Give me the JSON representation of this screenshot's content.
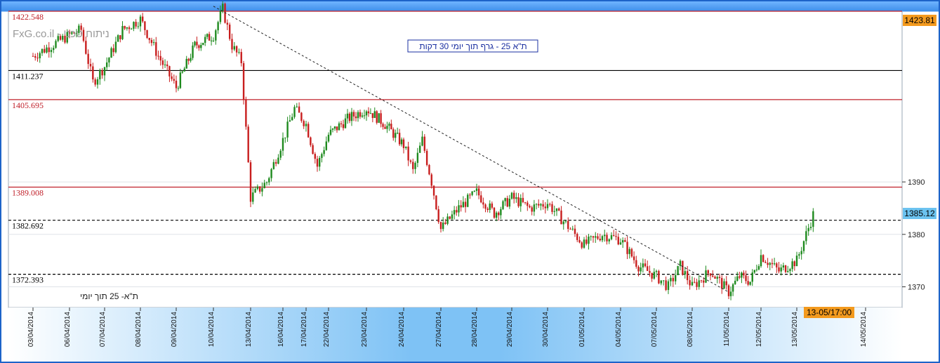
{
  "watermark": "FxG.co.il - ניתוח טכני",
  "chart_title": "ת\"א 25 - גרף תוך יומי 30 דקות",
  "instrument_label": "ת\"א- 25 תוך יומי",
  "price_tag_top": "1423.81",
  "price_tag_current": "1385.12",
  "time_tag": "13-05/17:00",
  "colors": {
    "up": "#1e8a1e",
    "down": "#c81e1e",
    "resistance": "#c0202a",
    "support": "#000000",
    "price_tag": "#f39a1e",
    "current_tag": "#6cc3f0"
  },
  "chart_data": {
    "type": "candlestick",
    "title": "ת\"א 25 - גרף תוך יומי 30 דקות",
    "interval": "30 min",
    "ylim": [
      1366,
      1425
    ],
    "y_ticks": [
      1370,
      1380,
      1390
    ],
    "x_ticks": [
      "03/04/2014",
      "06/04/2014",
      "07/04/2014",
      "08/04/2014",
      "09/04/2014",
      "10/04/2014",
      "13/04/2014",
      "16/04/2014",
      "17/04/2014",
      "22/04/2014",
      "23/04/2014",
      "24/04/2014",
      "27/04/2014",
      "28/04/2014",
      "29/04/2014",
      "30/04/2014",
      "01/05/2014",
      "04/05/2014",
      "07/05/2014",
      "08/05/2014",
      "11/05/2014",
      "12/05/2014",
      "13/05/2014",
      "14/05/2014"
    ],
    "horizontal_levels": [
      {
        "value": 1422.548,
        "label": "1422.548",
        "color": "red",
        "style": "solid"
      },
      {
        "value": 1411.237,
        "label": "1411.237",
        "color": "black",
        "style": "solid"
      },
      {
        "value": 1405.695,
        "label": "1405.695",
        "color": "red",
        "style": "solid"
      },
      {
        "value": 1389.008,
        "label": "1389.008",
        "color": "red",
        "style": "solid"
      },
      {
        "value": 1382.692,
        "label": "1382.692",
        "color": "black",
        "style": "dashed"
      },
      {
        "value": 1372.393,
        "label": "1372.393",
        "color": "black",
        "style": "dashed"
      }
    ],
    "trendline": {
      "from": {
        "date": "10/04/2014",
        "value": 1423.5
      },
      "to": {
        "date": "11/05/2014",
        "value": 1369.0
      }
    },
    "price_path": [
      {
        "date": "03/04/2014",
        "value": 1414
      },
      {
        "date": "03/04/2014",
        "value": 1416
      },
      {
        "date": "06/04/2014",
        "value": 1418
      },
      {
        "date": "06/04/2014",
        "value": 1419
      },
      {
        "date": "06/04/2014",
        "value": 1409
      },
      {
        "date": "07/04/2014",
        "value": 1412
      },
      {
        "date": "07/04/2014",
        "value": 1419
      },
      {
        "date": "08/04/2014",
        "value": 1421
      },
      {
        "date": "08/04/2014",
        "value": 1414
      },
      {
        "date": "09/04/2014",
        "value": 1408
      },
      {
        "date": "09/04/2014",
        "value": 1416
      },
      {
        "date": "10/04/2014",
        "value": 1418
      },
      {
        "date": "10/04/2014",
        "value": 1423
      },
      {
        "date": "10/04/2014",
        "value": 1416
      },
      {
        "date": "10/04/2014",
        "value": 1413
      },
      {
        "date": "13/04/2014",
        "value": 1387
      },
      {
        "date": "13/04/2014",
        "value": 1390
      },
      {
        "date": "16/04/2014",
        "value": 1398
      },
      {
        "date": "16/04/2014",
        "value": 1404
      },
      {
        "date": "17/04/2014",
        "value": 1401
      },
      {
        "date": "17/04/2014",
        "value": 1393
      },
      {
        "date": "22/04/2014",
        "value": 1399
      },
      {
        "date": "22/04/2014",
        "value": 1402
      },
      {
        "date": "23/04/2014",
        "value": 1404
      },
      {
        "date": "23/04/2014",
        "value": 1401
      },
      {
        "date": "24/04/2014",
        "value": 1397
      },
      {
        "date": "24/04/2014",
        "value": 1392
      },
      {
        "date": "24/04/2014",
        "value": 1398
      },
      {
        "date": "24/04/2014",
        "value": 1390
      },
      {
        "date": "27/04/2014",
        "value": 1381
      },
      {
        "date": "27/04/2014",
        "value": 1385
      },
      {
        "date": "28/04/2014",
        "value": 1388
      },
      {
        "date": "28/04/2014",
        "value": 1384
      },
      {
        "date": "29/04/2014",
        "value": 1387
      },
      {
        "date": "29/04/2014",
        "value": 1385
      },
      {
        "date": "30/04/2014",
        "value": 1386
      },
      {
        "date": "30/04/2014",
        "value": 1382
      },
      {
        "date": "01/05/2014",
        "value": 1378
      },
      {
        "date": "01/05/2014",
        "value": 1380
      },
      {
        "date": "04/05/2014",
        "value": 1379
      },
      {
        "date": "04/05/2014",
        "value": 1374
      },
      {
        "date": "07/05/2014",
        "value": 1372
      },
      {
        "date": "07/05/2014",
        "value": 1370
      },
      {
        "date": "07/05/2014",
        "value": 1374
      },
      {
        "date": "08/05/2014",
        "value": 1370
      },
      {
        "date": "08/05/2014",
        "value": 1373
      },
      {
        "date": "11/05/2014",
        "value": 1369
      },
      {
        "date": "11/05/2014",
        "value": 1372
      },
      {
        "date": "11/05/2014",
        "value": 1371
      },
      {
        "date": "12/05/2014",
        "value": 1376
      },
      {
        "date": "12/05/2014",
        "value": 1373
      },
      {
        "date": "13/05/2014",
        "value": 1375
      },
      {
        "date": "13/05/2014",
        "value": 1380
      },
      {
        "date": "13/05/2014",
        "value": 1385
      }
    ]
  }
}
